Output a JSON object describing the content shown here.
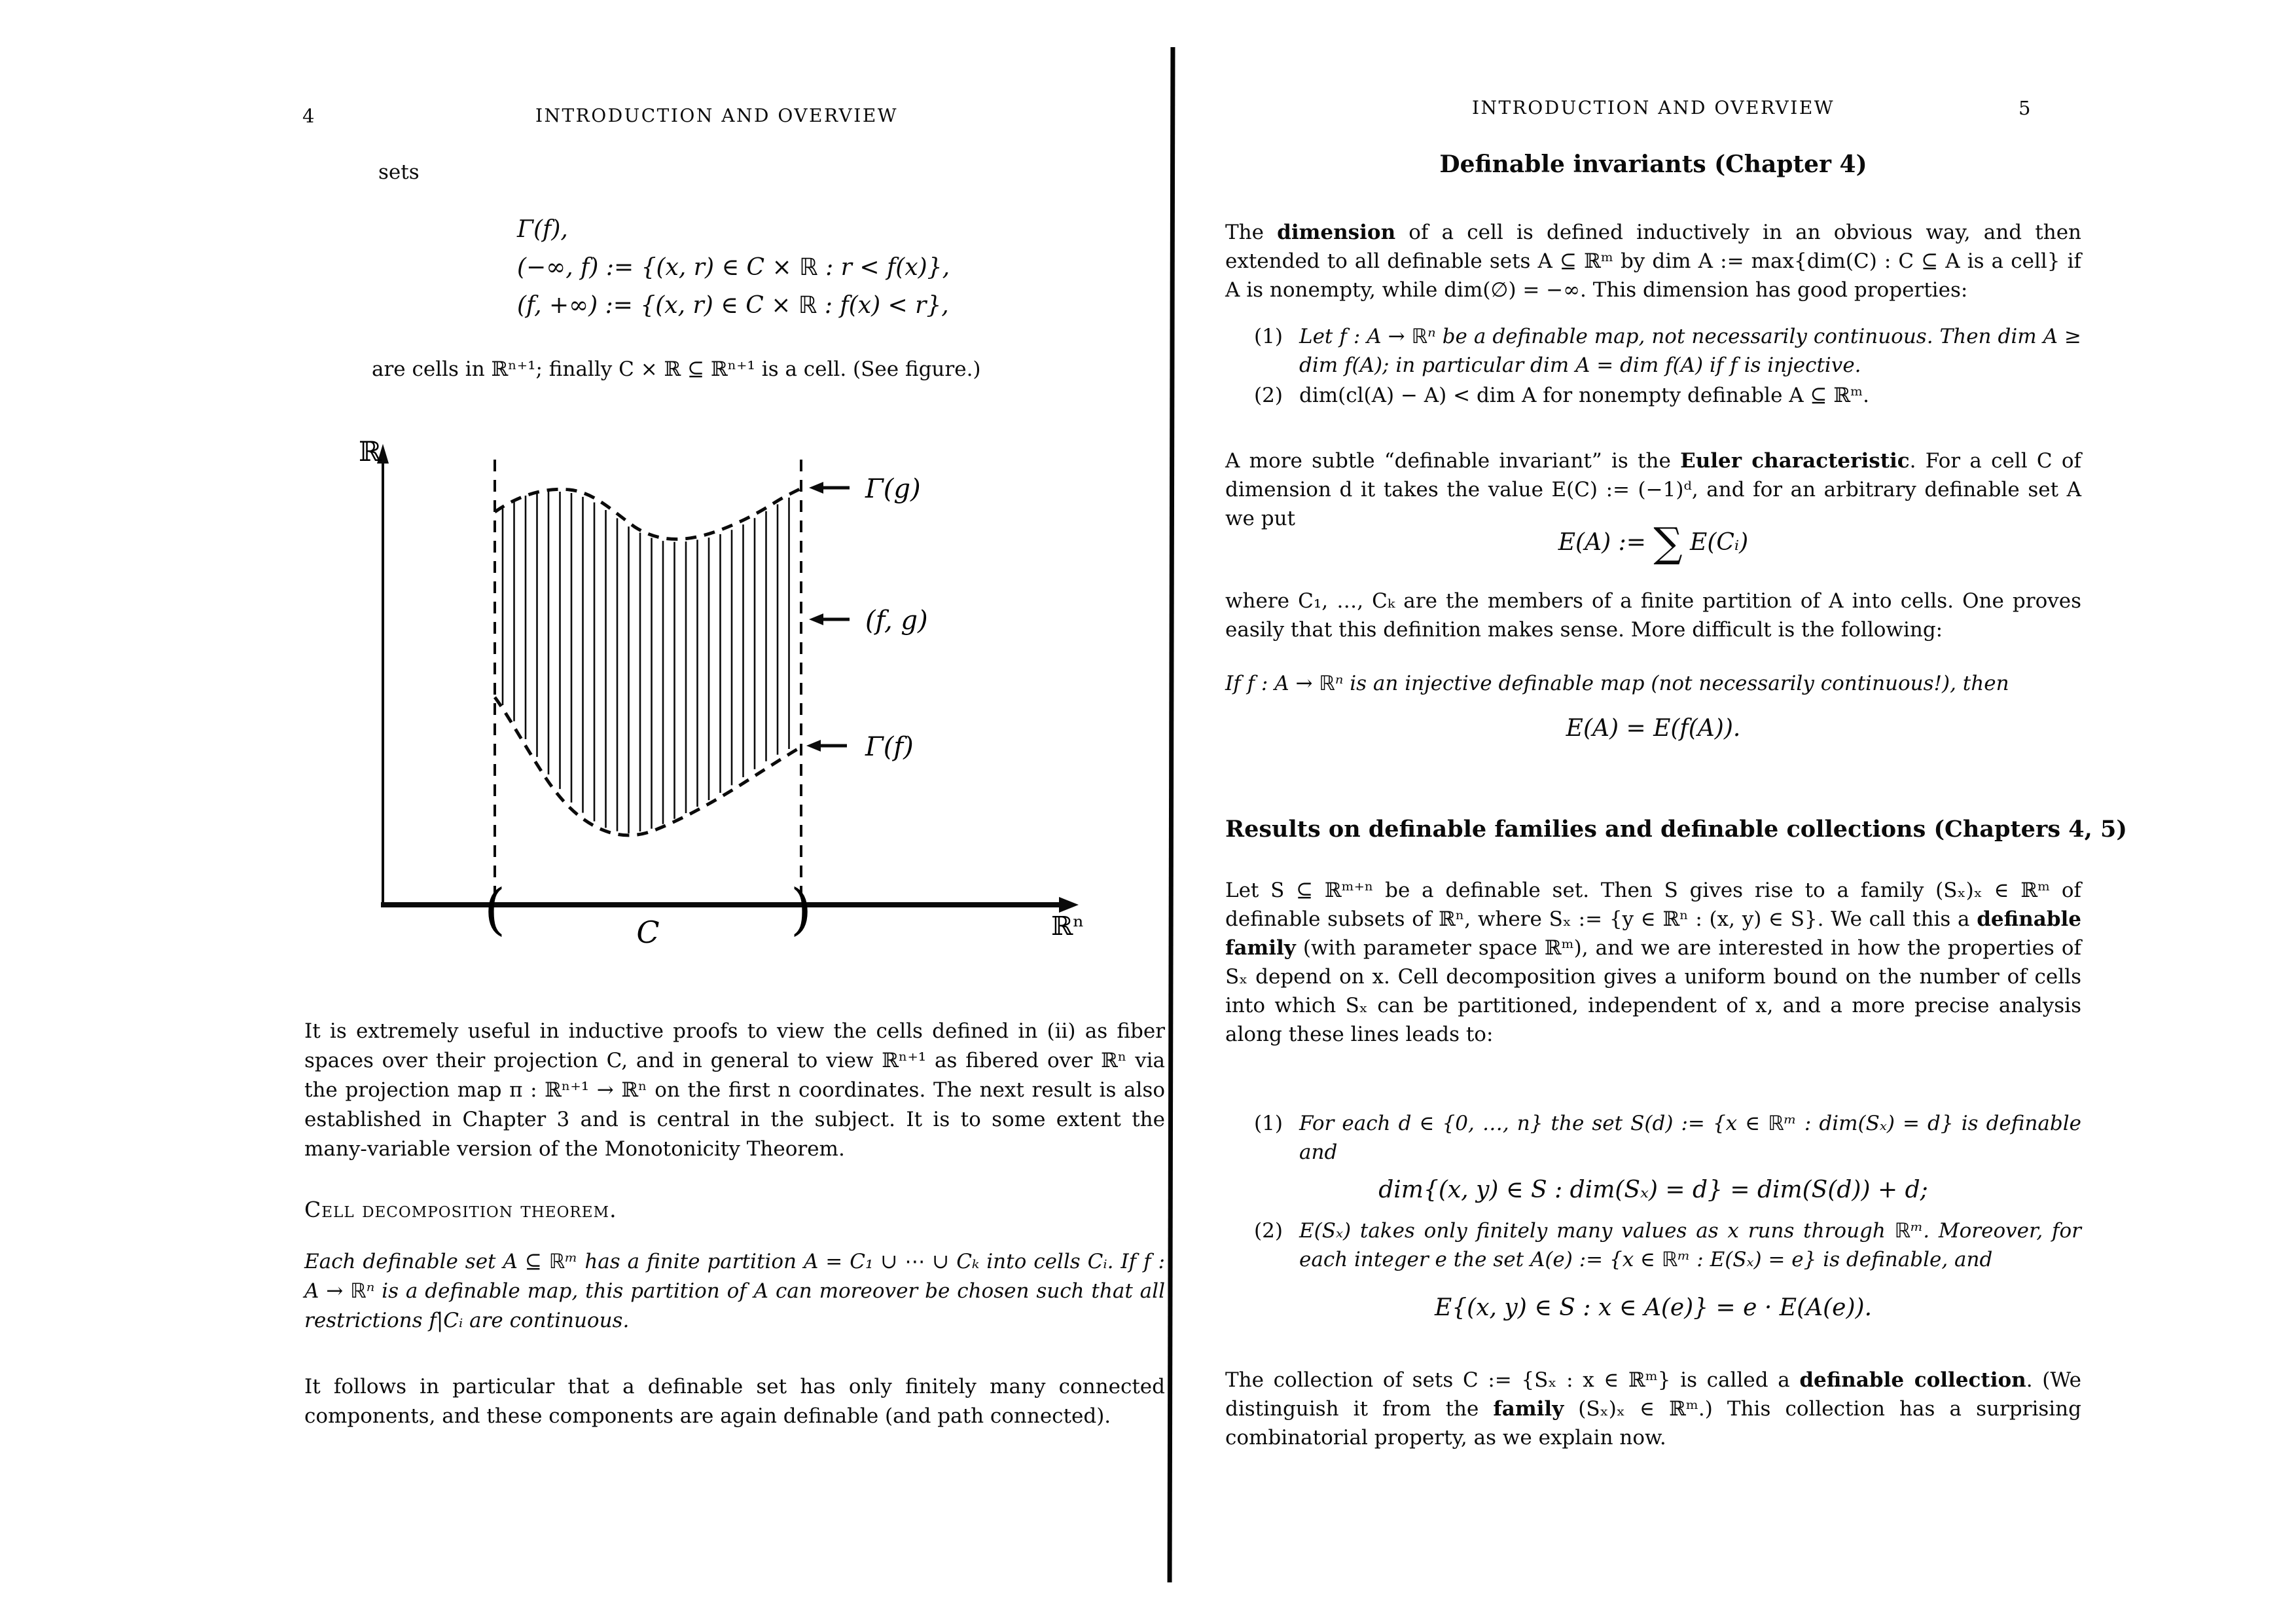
{
  "left_page": {
    "page_number": "4",
    "running_header": "INTRODUCTION AND OVERVIEW",
    "intro_word": "sets",
    "display_formulas": {
      "line1": "Γ(f),",
      "line2": "(−∞, f) := {(x, r) ∈ C × ℝ :  r < f(x)},",
      "line3": "(f, +∞) := {(x, r) ∈ C × ℝ :  f(x) < r},"
    },
    "after_formula_line": "are cells in ℝⁿ⁺¹; finally C × ℝ ⊆ ℝⁿ⁺¹ is a cell. (See figure.)",
    "figure": {
      "y_axis_label": "ℝ",
      "x_axis_label": "ℝⁿ",
      "label_gamma_g": "Γ(g)",
      "label_fg": "(f, g)",
      "label_gamma_f": "Γ(f)",
      "base_label": "C",
      "left_paren": "(",
      "right_paren": ")"
    },
    "paragraph_fiber": "It is extremely useful in inductive proofs to view the cells defined in (ii) as fiber spaces over their projection C, and in general to view ℝⁿ⁺¹ as fibered over ℝⁿ via the projection map π : ℝⁿ⁺¹ → ℝⁿ on the first n coordinates. The next result is also established in Chapter 3 and is central in the subject. It is to some extent the many-variable version of the Monotonicity Theorem.",
    "theorem_heading": "Cell decomposition theorem.",
    "theorem_body": "Each definable set A ⊆ ℝᵐ has a finite partition A = C₁ ∪ ⋯ ∪ Cₖ into cells Cᵢ. If f : A → ℝⁿ is a definable map, this partition of A can moreover be chosen such that all restrictions f|Cᵢ are continuous.",
    "paragraph_components": "It follows in particular that a definable set has only finitely many connected components, and these components are again definable (and path connected)."
  },
  "right_page": {
    "page_number": "5",
    "running_header": "INTRODUCTION AND OVERVIEW",
    "heading_invariants": "Definable invariants (Chapter 4)",
    "paragraph_dimension": [
      {
        "t": "The "
      },
      {
        "t": "dimension",
        "b": true
      },
      {
        "t": " of a cell is defined inductively in an obvious way, and then extended to all definable sets A ⊆ ℝᵐ by dim A := max{dim(C) :  C ⊆ A is a cell} if A is nonempty, while dim(∅) = −∞. This dimension has good properties:"
      }
    ],
    "prop_items": [
      {
        "num": "(1)",
        "text": "Let f : A → ℝⁿ be a definable map, not necessarily continuous. Then dim A ≥ dim f(A); in particular dim A = dim f(A) if f is injective."
      },
      {
        "num": "(2)",
        "text": "dim(cl(A) − A) < dim A for nonempty definable A ⊆ ℝᵐ."
      }
    ],
    "paragraph_euler": [
      {
        "t": "A more subtle “definable invariant” is the "
      },
      {
        "t": "Euler characteristic",
        "b": true
      },
      {
        "t": ". For a cell C of dimension d it takes the value E(C) := (−1)ᵈ, and for an arbitrary definable set A we put"
      }
    ],
    "formula_sum": {
      "pre": "E(A) := ",
      "sigma": "∑",
      "post": " E(Cᵢ)"
    },
    "paragraph_partition": "where C₁, …, Cₖ are the members of a finite partition of A into cells. One proves easily that this definition makes sense. More difficult is the following:",
    "statement_injective": "If f : A → ℝⁿ is an injective definable map (not necessarily continuous!), then",
    "formula_euler_eq": "E(A) = E(f(A)).",
    "heading_results": "Results on definable families and definable collections (Chapters 4, 5)",
    "paragraph_family": [
      {
        "t": "Let S ⊆ ℝᵐ⁺ⁿ be a definable set. Then S gives rise to a family (Sₓ)ₓ ∈ ℝᵐ of definable subsets of ℝⁿ, where Sₓ := {y ∈ ℝⁿ :  (x, y) ∈ S}. We call this a "
      },
      {
        "t": "definable family",
        "b": true
      },
      {
        "t": " (with parameter space ℝᵐ), and we are interested in how the properties of Sₓ depend on x. Cell decomposition gives a uniform bound on the number of cells into which Sₓ can be partitioned, independent of x, and a more precise analysis along these lines leads to:"
      }
    ],
    "family_items": [
      {
        "num": "(1)",
        "text": "For each d ∈ {0, …, n} the set S(d) := {x ∈ ℝᵐ :  dim(Sₓ) = d} is definable and",
        "formula": "dim{(x, y) ∈ S :  dim(Sₓ) = d}  =  dim(S(d)) + d;"
      },
      {
        "num": "(2)",
        "text": "E(Sₓ) takes only finitely many values as x runs through ℝᵐ. Moreover, for each integer e the set A(e) := {x ∈ ℝᵐ :  E(Sₓ) = e} is definable, and",
        "formula": "E{(x, y) ∈ S :  x ∈ A(e)} =  e · E(A(e))."
      }
    ],
    "paragraph_collection": [
      {
        "t": "The collection of sets C := {Sₓ :  x ∈ ℝᵐ} is called a "
      },
      {
        "t": "definable collection",
        "b": true
      },
      {
        "t": ". (We distinguish it from the "
      },
      {
        "t": "family",
        "b": true
      },
      {
        "t": " (Sₓ)ₓ ∈ ℝᵐ.) This collection has a surprising combinatorial property, as we explain now."
      }
    ]
  }
}
